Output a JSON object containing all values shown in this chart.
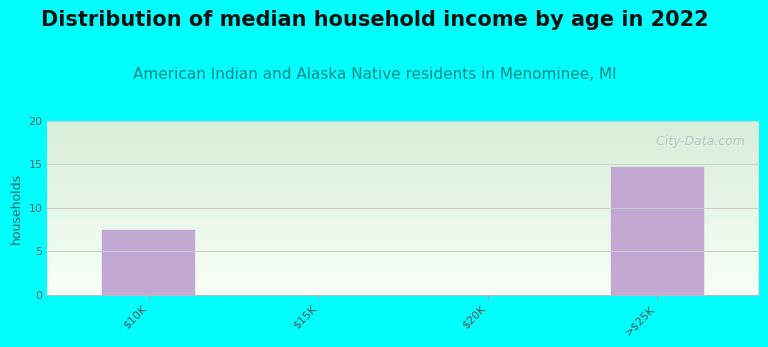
{
  "title": "Distribution of median household income by age in 2022",
  "subtitle": "American Indian and Alaska Native residents in Menominee, MI",
  "categories": [
    "$10K",
    "$15K",
    "$20K",
    ">$25K"
  ],
  "values": [
    7.5,
    0,
    0,
    14.7
  ],
  "bar_color": "#c4a8d4",
  "bar_edgecolor": "#c4a8d4",
  "background_color": "#00ffff",
  "plot_bg_topleft": "#d8eed8",
  "plot_bg_bottomright": "#f0f8f8",
  "ylim": [
    0,
    20
  ],
  "yticks": [
    0,
    5,
    10,
    15,
    20
  ],
  "ylabel": "households",
  "watermark": " City-Data.com",
  "title_fontsize": 15,
  "subtitle_fontsize": 11,
  "subtitle_color": "#008888",
  "ylabel_color": "#006666",
  "ytick_label_color": "#666666",
  "xtick_label_color": "#555555",
  "grid_color": "#cccccc",
  "bar_width": 0.55
}
